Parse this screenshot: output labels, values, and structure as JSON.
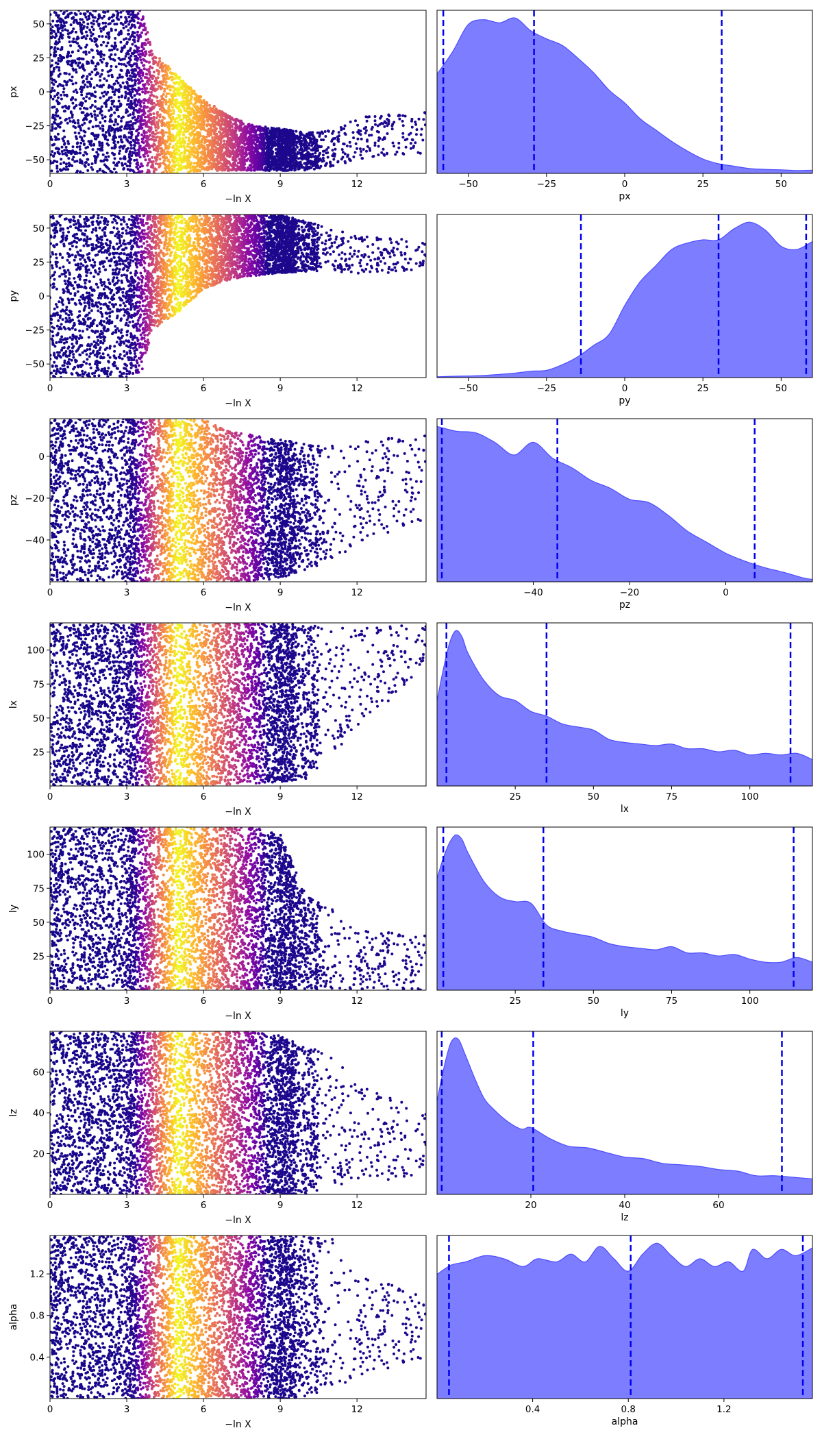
{
  "colors": {
    "kde_fill": "#6666ff",
    "kde_edge": "#4d4dff",
    "quantile_line": "#0000ee",
    "colormap": "plasma"
  },
  "chart_data": [
    {
      "type": "scatter",
      "panel": "trace",
      "param": "px",
      "xlabel": "−ln X",
      "ylabel": "px",
      "xlim": [
        0,
        14.7
      ],
      "ylim": [
        -60,
        60
      ],
      "xticks": [
        0,
        3,
        6,
        9,
        12
      ],
      "yticks": [
        50,
        25,
        0,
        -25,
        -50
      ],
      "color_peak_x": 5.0,
      "envelope": [
        [
          0,
          -60,
          60
        ],
        [
          3,
          -60,
          60
        ],
        [
          3.6,
          -60,
          60
        ],
        [
          4.0,
          -60,
          30
        ],
        [
          5.0,
          -60,
          12
        ],
        [
          6.0,
          -58,
          -5
        ],
        [
          7.0,
          -58,
          -18
        ],
        [
          8.0,
          -58,
          -25
        ],
        [
          9.0,
          -58,
          -27
        ],
        [
          10.0,
          -58,
          -30
        ],
        [
          11.0,
          -55,
          -28
        ],
        [
          12.0,
          -50,
          -18
        ],
        [
          14.7,
          -45,
          -15
        ]
      ]
    },
    {
      "type": "area",
      "panel": "posterior",
      "param": "px",
      "xlabel": "px",
      "xlim": [
        -60,
        60
      ],
      "xticks": [
        -50,
        -25,
        0,
        25,
        50
      ],
      "x": [
        -60,
        -55,
        -50,
        -45,
        -40,
        -35,
        -30,
        -25,
        -20,
        -15,
        -10,
        -5,
        0,
        5,
        10,
        15,
        20,
        25,
        30,
        35,
        40,
        45,
        50,
        55,
        60
      ],
      "density": [
        0.62,
        0.76,
        0.93,
        0.96,
        0.94,
        0.97,
        0.89,
        0.84,
        0.8,
        0.72,
        0.63,
        0.52,
        0.44,
        0.34,
        0.27,
        0.2,
        0.14,
        0.09,
        0.06,
        0.045,
        0.03,
        0.025,
        0.022,
        0.018,
        0.02
      ],
      "quantiles": [
        -58,
        -29,
        31
      ]
    },
    {
      "type": "scatter",
      "panel": "trace",
      "param": "py",
      "xlabel": "−ln X",
      "ylabel": "py",
      "xlim": [
        0,
        14.7
      ],
      "ylim": [
        -60,
        60
      ],
      "xticks": [
        0,
        3,
        6,
        9,
        12
      ],
      "yticks": [
        50,
        25,
        0,
        -25,
        -50
      ],
      "color_peak_x": 5.0,
      "envelope": [
        [
          0,
          -60,
          60
        ],
        [
          3,
          -60,
          60
        ],
        [
          3.6,
          -55,
          60
        ],
        [
          4.0,
          -25,
          60
        ],
        [
          5.0,
          -12,
          60
        ],
        [
          6.0,
          5,
          60
        ],
        [
          7.0,
          12,
          60
        ],
        [
          8.0,
          15,
          60
        ],
        [
          9.0,
          17,
          60
        ],
        [
          10.0,
          18,
          55
        ],
        [
          11.0,
          18,
          50
        ],
        [
          12.0,
          15,
          45
        ],
        [
          14.7,
          20,
          40
        ]
      ]
    },
    {
      "type": "area",
      "panel": "posterior",
      "param": "py",
      "xlabel": "py",
      "xlim": [
        -60,
        60
      ],
      "xticks": [
        -50,
        -25,
        0,
        25,
        50
      ],
      "x": [
        -60,
        -55,
        -50,
        -45,
        -40,
        -35,
        -30,
        -25,
        -20,
        -15,
        -10,
        -5,
        0,
        5,
        10,
        15,
        20,
        25,
        30,
        35,
        40,
        45,
        50,
        55,
        60
      ],
      "density": [
        0.005,
        0.008,
        0.01,
        0.013,
        0.02,
        0.028,
        0.04,
        0.045,
        0.08,
        0.13,
        0.2,
        0.27,
        0.45,
        0.6,
        0.7,
        0.8,
        0.84,
        0.86,
        0.86,
        0.93,
        0.97,
        0.92,
        0.82,
        0.8,
        0.85
      ],
      "quantiles": [
        -14,
        30,
        58
      ]
    },
    {
      "type": "scatter",
      "panel": "trace",
      "param": "pz",
      "xlabel": "−ln X",
      "ylabel": "pz",
      "xlim": [
        0,
        14.7
      ],
      "ylim": [
        -60,
        18
      ],
      "xticks": [
        0,
        3,
        6,
        9,
        12
      ],
      "yticks": [
        0,
        -20,
        -40
      ],
      "color_peak_x": 5.0,
      "envelope": [
        [
          0,
          -60,
          18
        ],
        [
          3,
          -60,
          18
        ],
        [
          4,
          -60,
          18
        ],
        [
          6,
          -60,
          18
        ],
        [
          7,
          -60,
          12
        ],
        [
          8,
          -60,
          10
        ],
        [
          9,
          -58,
          8
        ],
        [
          10,
          -55,
          6
        ],
        [
          11,
          -50,
          5
        ],
        [
          12,
          -42,
          8
        ],
        [
          14.7,
          -30,
          10
        ]
      ]
    },
    {
      "type": "area",
      "panel": "posterior",
      "param": "pz",
      "xlabel": "pz",
      "xlim": [
        -60,
        18
      ],
      "xticks": [
        -40,
        -20,
        0
      ],
      "x": [
        -60,
        -56,
        -52,
        -48,
        -44,
        -40,
        -36,
        -32,
        -28,
        -24,
        -20,
        -16,
        -12,
        -8,
        -4,
        0,
        4,
        8,
        12,
        16,
        18
      ],
      "density": [
        0.98,
        0.95,
        0.94,
        0.88,
        0.8,
        0.88,
        0.78,
        0.72,
        0.64,
        0.59,
        0.52,
        0.5,
        0.42,
        0.32,
        0.25,
        0.18,
        0.13,
        0.09,
        0.06,
        0.025,
        0.015
      ],
      "quantiles": [
        -59,
        -35,
        6
      ]
    },
    {
      "type": "scatter",
      "panel": "trace",
      "param": "lx",
      "xlabel": "−ln X",
      "ylabel": "lx",
      "xlim": [
        0,
        14.7
      ],
      "ylim": [
        0,
        120
      ],
      "xticks": [
        0,
        3,
        6,
        9,
        12
      ],
      "yticks": [
        100,
        75,
        50,
        25
      ],
      "color_peak_x": 5.0,
      "envelope": [
        [
          0,
          0,
          120
        ],
        [
          3,
          0,
          120
        ],
        [
          6,
          0,
          120
        ],
        [
          8,
          2,
          120
        ],
        [
          9,
          3,
          120
        ],
        [
          10,
          5,
          118
        ],
        [
          11,
          20,
          118
        ],
        [
          12,
          40,
          118
        ],
        [
          14.7,
          90,
          118
        ]
      ]
    },
    {
      "type": "area",
      "panel": "posterior",
      "param": "lx",
      "xlabel": "lx",
      "xlim": [
        0,
        120
      ],
      "xticks": [
        25,
        50,
        75,
        100
      ],
      "x": [
        0,
        2,
        4,
        6,
        8,
        10,
        15,
        20,
        25,
        30,
        35,
        40,
        45,
        50,
        55,
        60,
        65,
        70,
        75,
        80,
        85,
        90,
        95,
        100,
        105,
        110,
        115,
        120
      ],
      "density": [
        0.55,
        0.75,
        0.92,
        1.0,
        0.96,
        0.85,
        0.68,
        0.58,
        0.55,
        0.48,
        0.45,
        0.4,
        0.38,
        0.36,
        0.3,
        0.28,
        0.27,
        0.26,
        0.27,
        0.24,
        0.24,
        0.22,
        0.23,
        0.2,
        0.21,
        0.2,
        0.21,
        0.17
      ],
      "quantiles": [
        3,
        35,
        113
      ]
    },
    {
      "type": "scatter",
      "panel": "trace",
      "param": "ly",
      "xlabel": "−ln X",
      "ylabel": "ly",
      "xlim": [
        0,
        14.7
      ],
      "ylim": [
        0,
        120
      ],
      "xticks": [
        0,
        3,
        6,
        9,
        12
      ],
      "yticks": [
        100,
        75,
        50,
        25
      ],
      "color_peak_x": 5.0,
      "envelope": [
        [
          0,
          0,
          120
        ],
        [
          3,
          0,
          120
        ],
        [
          6,
          0,
          120
        ],
        [
          8,
          0,
          120
        ],
        [
          9,
          0,
          115
        ],
        [
          10,
          0,
          70
        ],
        [
          11,
          0,
          60
        ],
        [
          12,
          0,
          45
        ],
        [
          14.7,
          0,
          40
        ]
      ]
    },
    {
      "type": "area",
      "panel": "posterior",
      "param": "ly",
      "xlabel": "ly",
      "xlim": [
        0,
        120
      ],
      "xticks": [
        25,
        50,
        75,
        100
      ],
      "x": [
        0,
        2,
        4,
        6,
        8,
        10,
        15,
        20,
        25,
        30,
        35,
        40,
        45,
        50,
        55,
        60,
        65,
        70,
        75,
        80,
        85,
        90,
        95,
        100,
        105,
        110,
        115,
        120
      ],
      "density": [
        0.72,
        0.85,
        0.95,
        1.0,
        0.97,
        0.88,
        0.7,
        0.6,
        0.57,
        0.56,
        0.42,
        0.38,
        0.36,
        0.34,
        0.3,
        0.28,
        0.27,
        0.26,
        0.28,
        0.24,
        0.24,
        0.22,
        0.23,
        0.2,
        0.18,
        0.18,
        0.21,
        0.18
      ],
      "quantiles": [
        2,
        34,
        114
      ]
    },
    {
      "type": "scatter",
      "panel": "trace",
      "param": "lz",
      "xlabel": "−ln X",
      "ylabel": "lz",
      "xlim": [
        0,
        14.7
      ],
      "ylim": [
        0,
        80
      ],
      "xticks": [
        0,
        3,
        6,
        9,
        12
      ],
      "yticks": [
        60,
        40,
        20
      ],
      "color_peak_x": 5.0,
      "envelope": [
        [
          0,
          0,
          80
        ],
        [
          3,
          0,
          80
        ],
        [
          6,
          0,
          80
        ],
        [
          8,
          0,
          80
        ],
        [
          9,
          0,
          78
        ],
        [
          10,
          0,
          72
        ],
        [
          11,
          2,
          70
        ],
        [
          12,
          5,
          55
        ],
        [
          14.7,
          10,
          40
        ]
      ]
    },
    {
      "type": "area",
      "panel": "posterior",
      "param": "lz",
      "xlabel": "lz",
      "xlim": [
        0,
        80
      ],
      "xticks": [
        20,
        40,
        60
      ],
      "x": [
        0,
        1.5,
        3,
        4.5,
        6,
        8,
        10,
        12,
        15,
        18,
        20,
        24,
        28,
        32,
        36,
        40,
        44,
        48,
        52,
        56,
        60,
        64,
        68,
        72,
        76,
        80
      ],
      "density": [
        0.6,
        0.82,
        0.98,
        1.0,
        0.9,
        0.75,
        0.62,
        0.55,
        0.47,
        0.42,
        0.43,
        0.36,
        0.31,
        0.3,
        0.27,
        0.24,
        0.23,
        0.2,
        0.19,
        0.18,
        0.16,
        0.15,
        0.12,
        0.12,
        0.11,
        0.1
      ],
      "quantiles": [
        1,
        20.5,
        73.5
      ]
    },
    {
      "type": "scatter",
      "panel": "trace",
      "param": "alpha",
      "xlabel": "−ln X",
      "ylabel": "alpha",
      "xlim": [
        0,
        14.7
      ],
      "ylim": [
        0,
        1.57
      ],
      "xticks": [
        0,
        3,
        6,
        9,
        12
      ],
      "yticks": [
        1.2,
        0.8,
        0.4
      ],
      "color_peak_x": 5.0,
      "envelope": [
        [
          0,
          0,
          1.57
        ],
        [
          3,
          0,
          1.57
        ],
        [
          6,
          0,
          1.57
        ],
        [
          8,
          0,
          1.57
        ],
        [
          9,
          0,
          1.57
        ],
        [
          10,
          0,
          1.57
        ],
        [
          11,
          0.1,
          1.55
        ],
        [
          12,
          0.2,
          1.2
        ],
        [
          14.7,
          0.4,
          1.0
        ]
      ]
    },
    {
      "type": "area",
      "panel": "posterior",
      "param": "alpha",
      "xlabel": "alpha",
      "xlim": [
        0,
        1.57
      ],
      "xticks": [
        0.4,
        0.8,
        1.2
      ],
      "x": [
        0,
        0.06,
        0.12,
        0.2,
        0.28,
        0.36,
        0.42,
        0.5,
        0.56,
        0.62,
        0.68,
        0.74,
        0.8,
        0.86,
        0.92,
        0.98,
        1.04,
        1.1,
        1.16,
        1.22,
        1.28,
        1.32,
        1.38,
        1.44,
        1.5,
        1.57
      ],
      "density": [
        0.8,
        0.86,
        0.88,
        0.92,
        0.9,
        0.85,
        0.9,
        0.88,
        0.93,
        0.88,
        0.98,
        0.9,
        0.82,
        0.93,
        1.0,
        0.92,
        0.85,
        0.9,
        0.85,
        0.88,
        0.82,
        0.96,
        0.9,
        0.96,
        0.92,
        0.97
      ],
      "quantiles": [
        0.05,
        0.81,
        1.53
      ]
    }
  ]
}
